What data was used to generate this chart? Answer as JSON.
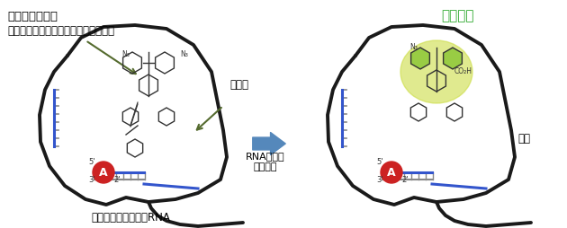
{
  "title_left": "蛍光活性化合物",
  "subtitle_left": "（フルオレセインーアジドプローブ）",
  "title_right": "蛍光発生",
  "label_reducer": "還元剤",
  "label_reaction": "RNA上での\n化学反応",
  "label_oxidized": "酸化",
  "label_lasso": "投げ縄型イントロンRNA",
  "label_5prime_left": "5'",
  "label_3prime_left": "3'",
  "label_2prime_left": "2'",
  "label_5prime_right": "5'",
  "label_3prime_right": "3'",
  "label_2prime_right": "2'",
  "label_A": "A",
  "bg_color": "#ffffff",
  "lasso_color": "#1a1a1a",
  "blue_strand_color": "#3355cc",
  "hatch_color": "#555555",
  "arrow_color": "#5588bb",
  "green_arrow_color": "#556b2f",
  "red_circle_color": "#cc2222",
  "glow_color": "#ccdd44",
  "text_color_title": "#000000",
  "text_color_right_title": "#33aa33",
  "fig_width": 6.3,
  "fig_height": 2.54
}
